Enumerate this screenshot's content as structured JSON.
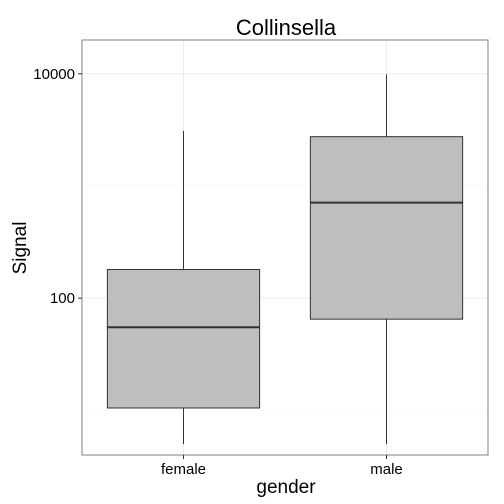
{
  "chart_data": {
    "type": "box",
    "title": "Collinsella",
    "xlabel": "gender",
    "ylabel": "Signal",
    "y_scale": "log10",
    "ylim": [
      4,
      20000
    ],
    "y_ticks": [
      100,
      10000
    ],
    "y_tick_labels": [
      "100",
      "10000"
    ],
    "grid": true,
    "categories": [
      "female",
      "male"
    ],
    "boxes": [
      {
        "category": "female",
        "whisker_low": 5,
        "q1": 10.5,
        "median": 55,
        "q3": 180,
        "whisker_high": 3100
      },
      {
        "category": "male",
        "whisker_low": 5,
        "q1": 65,
        "median": 710,
        "q3": 2750,
        "whisker_high": 9900
      }
    ],
    "colors": {
      "box_fill": "#bebebe",
      "box_stroke": "#333333",
      "panel_border": "#7f7f7f",
      "grid_major": "#ebebeb",
      "grid_minor": "#f5f5f5"
    }
  }
}
